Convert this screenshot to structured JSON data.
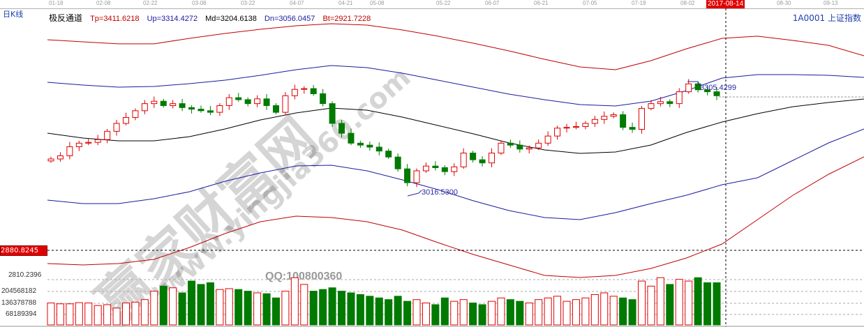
{
  "header": {
    "period": "日K线",
    "indicator": "极反通道",
    "symbol": "1A0001  上证指数",
    "tp": "Tp=3411.6218",
    "up": "Up=3314.4272",
    "md": "Md=3204.6138",
    "dn": "Dn=3056.0457",
    "bt": "Bt=2921.7228"
  },
  "colors": {
    "up_candle": "#e00000",
    "down_candle": "#007a00",
    "tp": "#c00000",
    "up_band": "#1a1aa0",
    "md": "#000000",
    "dn_band": "#1a1aa0",
    "bt": "#c00000",
    "crosshair_label": "#e00000"
  },
  "dates": [
    "01-18",
    "02-08",
    "02-22",
    "03-08",
    "03-22",
    "04-07",
    "04-21",
    "05-08",
    "05-22",
    "06-07",
    "06-21",
    "07-05",
    "07-19",
    "08-02",
    "2017-08-14",
    "08-30",
    "09-13"
  ],
  "crosshair": {
    "date": "2017-08-14",
    "price": "2880.8245"
  },
  "volume_axis": [
    "2810.2396",
    "204568182",
    "136378788",
    "68189394"
  ],
  "watermark": {
    "main": "赢家财富网",
    "url": "www.yingjia360.com",
    "qq": "QQ:100800360"
  },
  "chart_data": {
    "type": "candlestick",
    "annotations": {
      "high": "3305.4299",
      "low": "3016.5300"
    },
    "close": [
      3110,
      3118,
      3141,
      3150,
      3152,
      3159,
      3180,
      3200,
      3215,
      3232,
      3250,
      3256,
      3245,
      3250,
      3240,
      3236,
      3232,
      3228,
      3245,
      3265,
      3260,
      3250,
      3262,
      3245,
      3228,
      3270,
      3286,
      3288,
      3275,
      3250,
      3200,
      3175,
      3150,
      3145,
      3140,
      3130,
      3115,
      3085,
      3050,
      3080,
      3092,
      3088,
      3078,
      3090,
      3125,
      3108,
      3100,
      3125,
      3150,
      3145,
      3135,
      3138,
      3150,
      3168,
      3188,
      3190,
      3192,
      3200,
      3210,
      3218,
      3222,
      3190,
      3185,
      3238,
      3250,
      3255,
      3250,
      3280,
      3300,
      3285,
      3280,
      3270
    ],
    "volume_millions": [
      130,
      125,
      125,
      132,
      130,
      115,
      120,
      100,
      130,
      135,
      150,
      200,
      230,
      220,
      190,
      260,
      240,
      250,
      210,
      215,
      210,
      200,
      190,
      185,
      160,
      200,
      280,
      240,
      200,
      210,
      220,
      200,
      190,
      180,
      170,
      160,
      150,
      170,
      140,
      150,
      130,
      120,
      160,
      140,
      150,
      130,
      120,
      140,
      160,
      150,
      140,
      130,
      150,
      160,
      170,
      140,
      150,
      160,
      180,
      190,
      170,
      160,
      150,
      260,
      230,
      280,
      240,
      270,
      260,
      280,
      250,
      250
    ],
    "bands": {
      "Tp": [
        3411.6,
        3406.3,
        3401.1,
        3401.1,
        3415.2,
        3427.5,
        3438.1,
        3446.9,
        3452.2,
        3448.7,
        3436.3,
        3420.5,
        3402.8,
        3383.4,
        3362.2,
        3342.8,
        3335.8,
        3358.7,
        3388.7,
        3415.2,
        3420.5,
        3409.9,
        3397.5,
        3371.1
      ],
      "Up": [
        3304.0,
        3297.0,
        3291.7,
        3293.5,
        3300.5,
        3309.3,
        3321.7,
        3335.8,
        3346.4,
        3341.1,
        3327.0,
        3309.3,
        3291.7,
        3274.0,
        3259.9,
        3247.6,
        3244.1,
        3256.4,
        3282.9,
        3314.6,
        3323.4,
        3323.4,
        3321.7,
        3316.4
      ],
      "Md": [
        3175.3,
        3162.9,
        3155.9,
        3155.9,
        3166.5,
        3185.9,
        3208.8,
        3226.4,
        3238.8,
        3233.5,
        3215.8,
        3194.7,
        3173.5,
        3150.6,
        3133.0,
        3124.1,
        3127.7,
        3145.3,
        3177.0,
        3203.5,
        3224.7,
        3242.3,
        3252.9,
        3261.7
      ],
      "Dn": [
        3006.0,
        2997.1,
        2997.1,
        3009.5,
        3027.1,
        3053.6,
        3074.7,
        3092.4,
        3094.1,
        3080.0,
        3057.1,
        3032.4,
        3004.2,
        2979.5,
        2961.9,
        2956.5,
        2974.2,
        2997.1,
        3018.3,
        3044.7,
        3062.4,
        3106.5,
        3150.6,
        3185.9
      ],
      "Bt": [
        2845.4,
        2841.9,
        2845.4,
        2856.0,
        2886.0,
        2921.3,
        2951.2,
        2965.3,
        2961.9,
        2951.2,
        2930.1,
        2898.3,
        2868.3,
        2841.9,
        2815.4,
        2810.1,
        2815.4,
        2833.1,
        2859.6,
        2894.8,
        2956.5,
        3018.3,
        3071.2,
        3115.3
      ]
    }
  }
}
